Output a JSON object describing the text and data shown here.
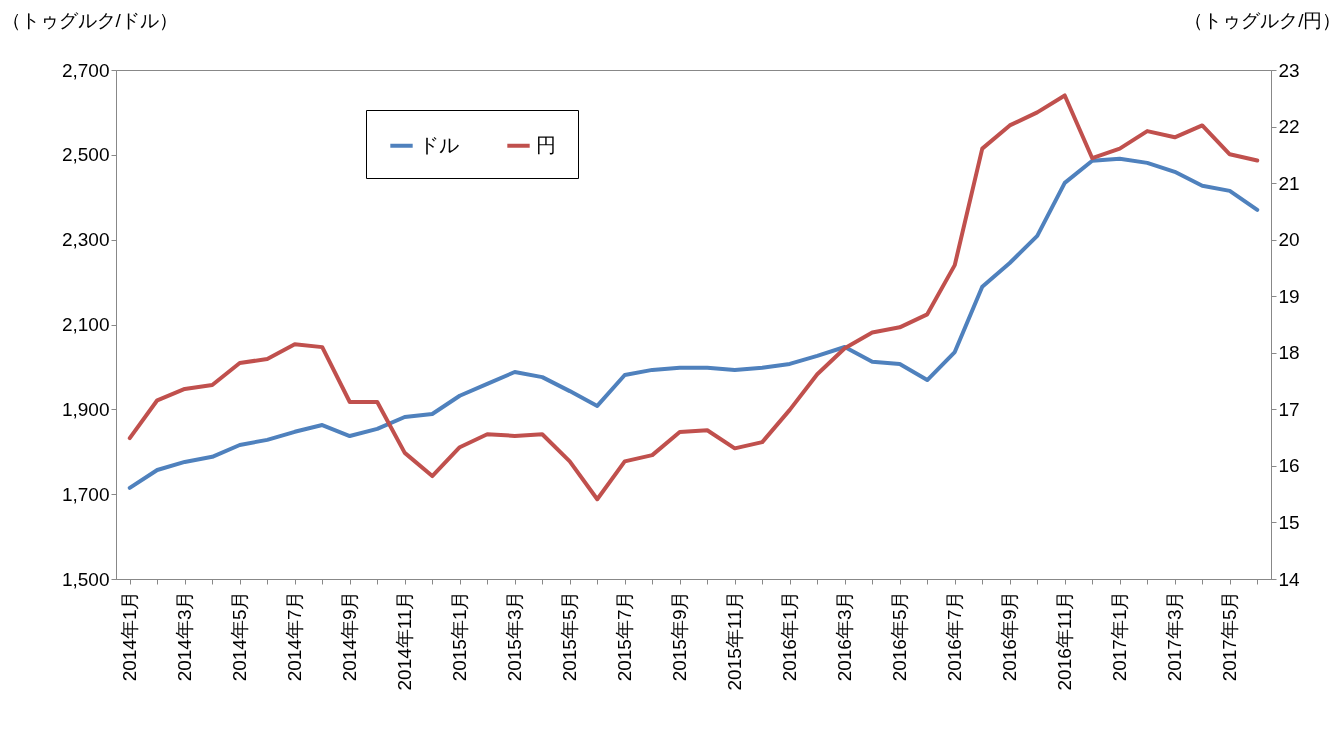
{
  "chart_data": {
    "type": "line",
    "ylabel": "（トゥグルク/ドル）",
    "y2label": "（トゥグルク/円）",
    "categories": [
      "2014年1月",
      null,
      "2014年3月",
      null,
      "2014年5月",
      null,
      "2014年7月",
      null,
      "2014年9月",
      null,
      "2014年11月",
      null,
      "2015年1月",
      null,
      "2015年3月",
      null,
      "2015年5月",
      null,
      "2015年7月",
      null,
      "2015年9月",
      null,
      "2015年11月",
      null,
      "2016年1月",
      null,
      "2016年3月",
      null,
      "2016年5月",
      null,
      "2016年7月",
      null,
      "2016年9月",
      null,
      "2016年11月",
      null,
      "2017年1月",
      null,
      "2017年3月",
      null,
      "2017年5月",
      null
    ],
    "series": [
      {
        "name": "ドル",
        "color": "#4f81bd",
        "values": [
          1715,
          1757,
          1776,
          1788,
          1816,
          1828,
          1847,
          1863,
          1837,
          1854,
          1882,
          1889,
          1932,
          1960,
          1988,
          1976,
          1943,
          1908,
          1981,
          1993,
          1998,
          1998,
          1993,
          1998,
          2007,
          2026,
          2047,
          2012,
          2007,
          1969,
          2035,
          2189,
          2245,
          2309,
          2434,
          2486,
          2491,
          2481,
          2460,
          2427,
          2415,
          2370
        ]
      },
      {
        "name": "円",
        "color": "#c0504d",
        "axis": "y2",
        "values": [
          16.49,
          17.16,
          17.36,
          17.43,
          17.82,
          17.89,
          18.15,
          18.1,
          17.13,
          17.13,
          16.23,
          15.82,
          16.33,
          16.56,
          16.53,
          16.56,
          16.08,
          15.41,
          16.08,
          16.19,
          16.6,
          16.63,
          16.31,
          16.42,
          16.99,
          17.62,
          18.08,
          18.36,
          18.45,
          18.68,
          19.55,
          21.61,
          22.02,
          22.25,
          22.55,
          21.44,
          21.61,
          21.92,
          21.81,
          22.02,
          21.51,
          21.4
        ]
      }
    ],
    "ylim": [
      1500,
      2700
    ],
    "yticks": [
      {
        "value": 1500,
        "label": "1,500"
      },
      {
        "value": 1700,
        "label": "1,700"
      },
      {
        "value": 1900,
        "label": "1,900"
      },
      {
        "value": 2100,
        "label": "2,100"
      },
      {
        "value": 2300,
        "label": "2,300"
      },
      {
        "value": 2500,
        "label": "2,500"
      },
      {
        "value": 2700,
        "label": "2,700"
      }
    ],
    "y2lim": [
      14,
      23
    ],
    "y2ticks": [
      14,
      15,
      16,
      17,
      18,
      19,
      20,
      21,
      22,
      23
    ],
    "grid": false,
    "legend": "top left"
  }
}
